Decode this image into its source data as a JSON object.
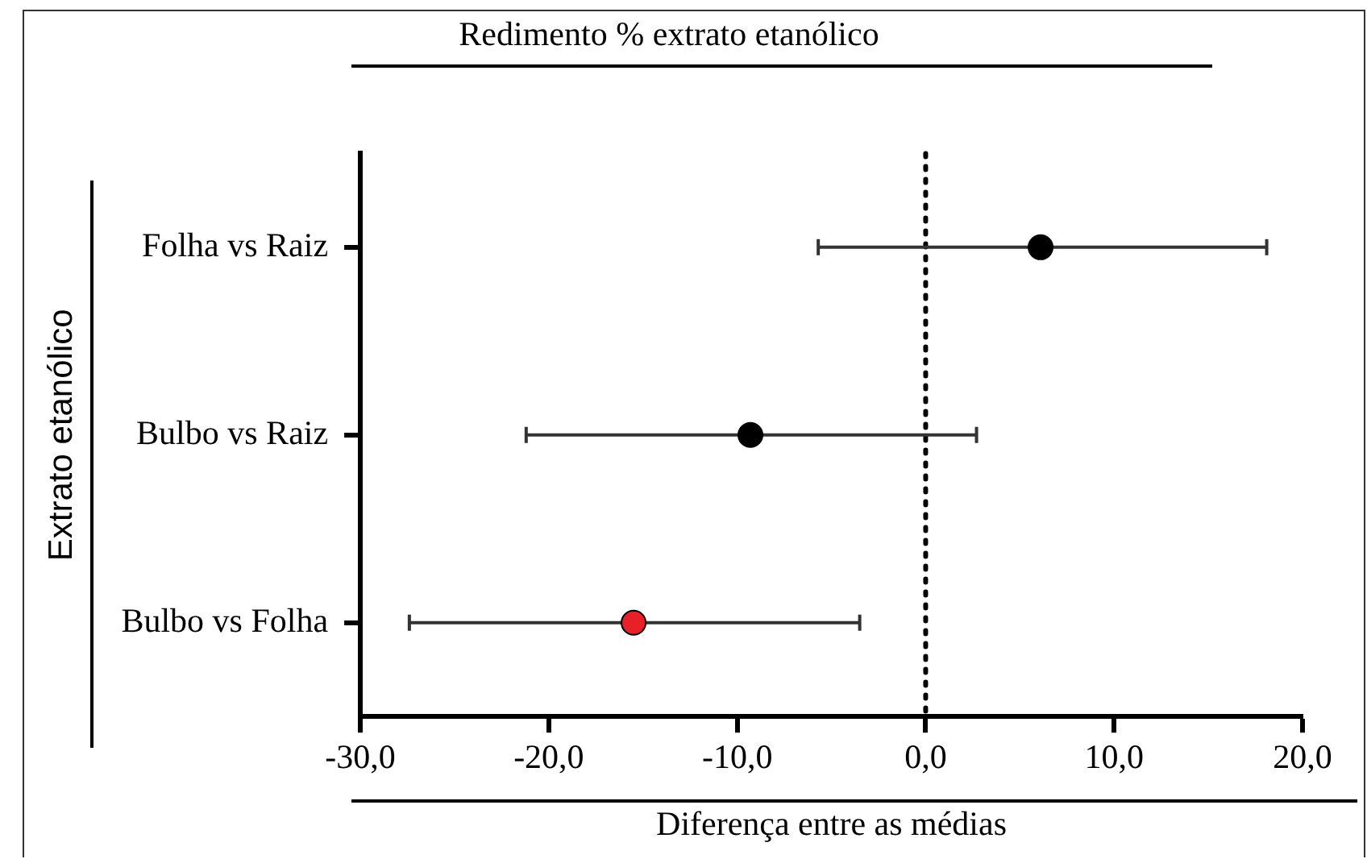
{
  "chart_data": {
    "type": "scatter",
    "title": "Redimento % extrato etanólico",
    "xlabel": "Diferença entre as médias",
    "ylabel": "Extrato etanólico",
    "orientation": "horizontal",
    "categories": [
      "Folha vs Raiz",
      "Bulbo vs Raiz",
      "Bulbo vs Folha"
    ],
    "values": [
      6.1,
      -9.3,
      -15.5
    ],
    "errors": [
      [
        -5.7,
        18.1
      ],
      [
        -21.2,
        2.7
      ],
      [
        -27.4,
        -3.5
      ]
    ],
    "colors": [
      "#000000",
      "#000000",
      "#e8202a"
    ],
    "xlim": [
      -30,
      20
    ],
    "xticks": [
      {
        "value": -30,
        "label": "-30,0"
      },
      {
        "value": -20,
        "label": "-20,0"
      },
      {
        "value": -10,
        "label": "-10,0"
      },
      {
        "value": 0,
        "label": "0,0"
      },
      {
        "value": 10,
        "label": "10,0"
      },
      {
        "value": 20,
        "label": "20,0"
      }
    ],
    "ref_lines": [
      {
        "axis": "x",
        "value": 0,
        "line_style": "dotted",
        "color": "#000000"
      }
    ],
    "marker": "circle",
    "grid": false,
    "legend": false
  }
}
